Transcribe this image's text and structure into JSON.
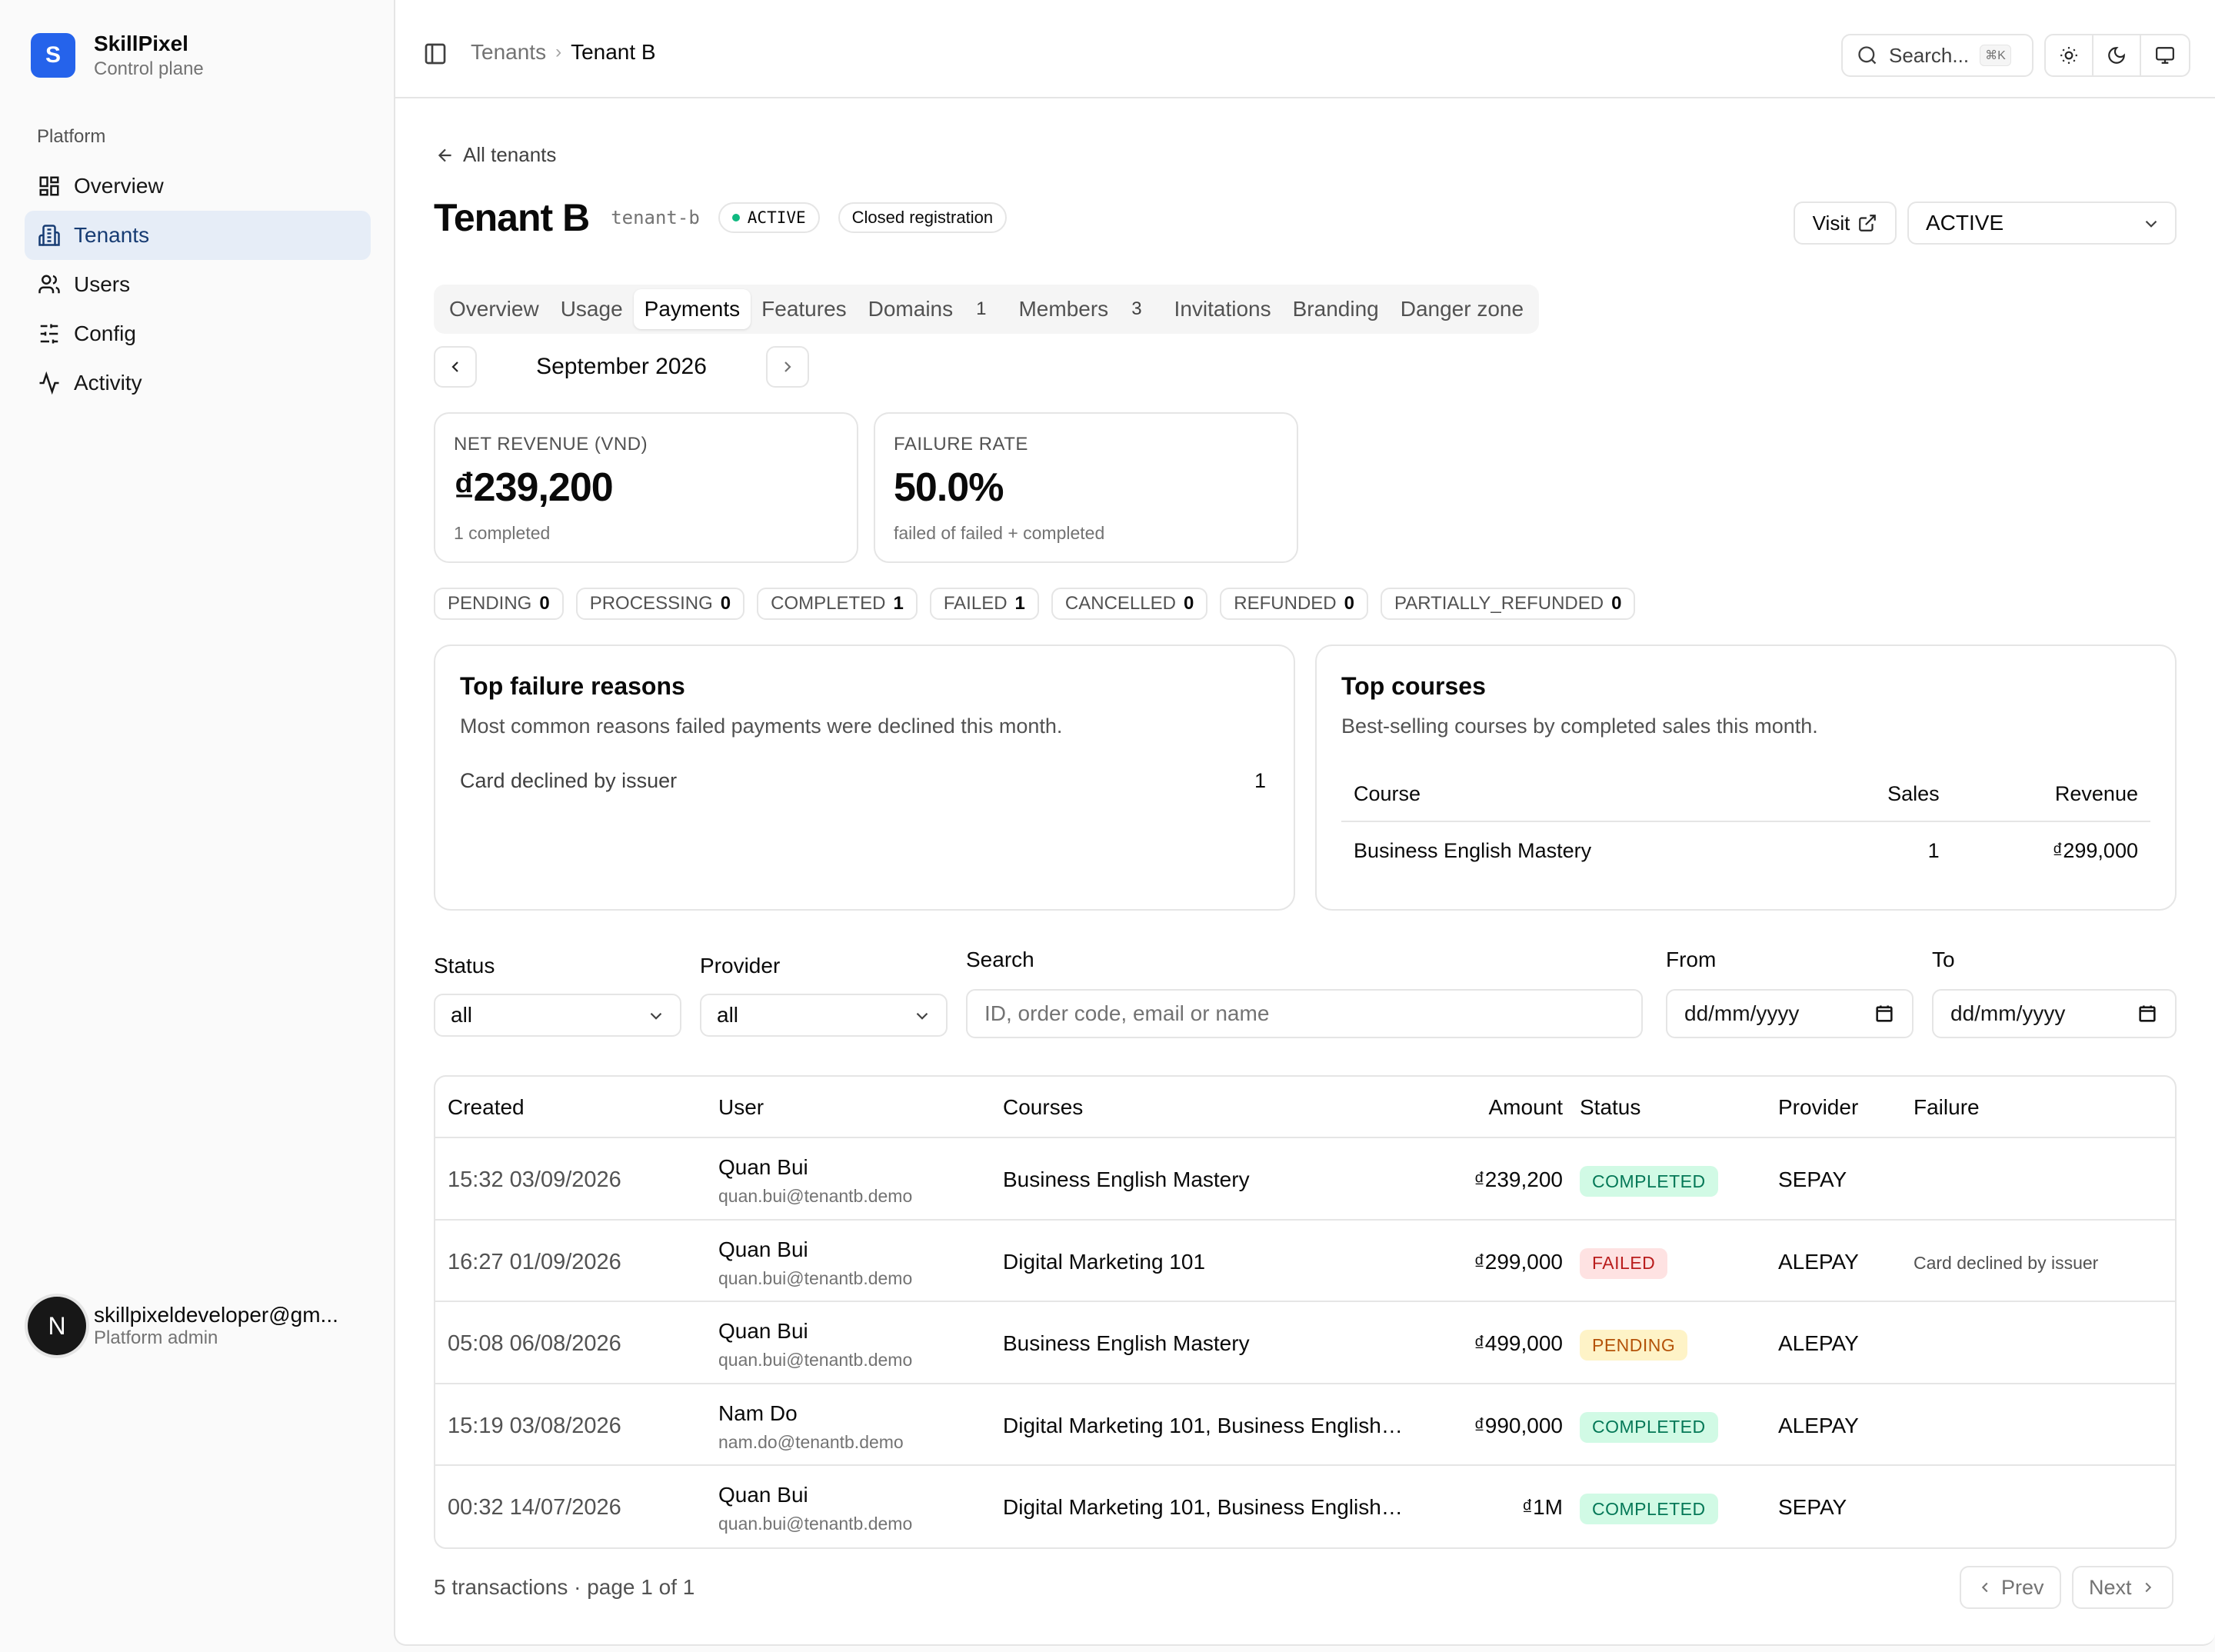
{
  "app": {
    "name": "SkillPixel",
    "subtitle": "Control plane",
    "logo_letter": "S"
  },
  "sidebar": {
    "section": "Platform",
    "items": [
      {
        "label": "Overview",
        "icon": "dashboard-icon"
      },
      {
        "label": "Tenants",
        "icon": "building-icon",
        "active": true
      },
      {
        "label": "Users",
        "icon": "users-icon"
      },
      {
        "label": "Config",
        "icon": "sliders-icon"
      },
      {
        "label": "Activity",
        "icon": "activity-icon"
      }
    ],
    "user": {
      "initial": "N",
      "email": "skillpixeldeveloper@gm...",
      "role": "Platform admin"
    }
  },
  "topbar": {
    "breadcrumb": [
      "Tenants",
      "Tenant B"
    ],
    "search_label": "Search...",
    "search_shortcut": "⌘K"
  },
  "tenant": {
    "back_link": "All tenants",
    "name": "Tenant B",
    "slug": "tenant-b",
    "status_badge": "ACTIVE",
    "registration": "Closed registration",
    "visit_label": "Visit",
    "status_select": "ACTIVE"
  },
  "tabs": [
    {
      "label": "Overview"
    },
    {
      "label": "Usage"
    },
    {
      "label": "Payments",
      "active": true
    },
    {
      "label": "Features"
    },
    {
      "label": "Domains",
      "count": "1"
    },
    {
      "label": "Members",
      "count": "3"
    },
    {
      "label": "Invitations"
    },
    {
      "label": "Branding"
    },
    {
      "label": "Danger zone"
    }
  ],
  "month": "September 2026",
  "stats": {
    "revenue": {
      "label": "NET REVENUE (VND)",
      "value": "₫239,200",
      "sub": "1 completed"
    },
    "failure": {
      "label": "FAILURE RATE",
      "value": "50.0%",
      "sub": "failed of failed + completed"
    }
  },
  "status_counts": [
    {
      "label": "PENDING",
      "count": "0"
    },
    {
      "label": "PROCESSING",
      "count": "0"
    },
    {
      "label": "COMPLETED",
      "count": "1"
    },
    {
      "label": "FAILED",
      "count": "1"
    },
    {
      "label": "CANCELLED",
      "count": "0"
    },
    {
      "label": "REFUNDED",
      "count": "0"
    },
    {
      "label": "PARTIALLY_REFUNDED",
      "count": "0"
    }
  ],
  "failure_reasons": {
    "title": "Top failure reasons",
    "description": "Most common reasons failed payments were declined this month.",
    "items": [
      {
        "reason": "Card declined by issuer",
        "count": "1"
      }
    ]
  },
  "top_courses": {
    "title": "Top courses",
    "description": "Best-selling courses by completed sales this month.",
    "headers": {
      "course": "Course",
      "sales": "Sales",
      "revenue": "Revenue"
    },
    "rows": [
      {
        "course": "Business English Mastery",
        "sales": "1",
        "revenue": "₫299,000"
      }
    ]
  },
  "filters": {
    "status_label": "Status",
    "status_value": "all",
    "provider_label": "Provider",
    "provider_value": "all",
    "search_label": "Search",
    "search_placeholder": "ID, order code, email or name",
    "from_label": "From",
    "from_value": "dd/mm/yyyy",
    "to_label": "To",
    "to_value": "dd/mm/yyyy"
  },
  "transactions": {
    "headers": {
      "created": "Created",
      "user": "User",
      "courses": "Courses",
      "amount": "Amount",
      "status": "Status",
      "provider": "Provider",
      "failure": "Failure"
    },
    "rows": [
      {
        "created": "15:32 03/09/2026",
        "name": "Quan Bui",
        "email": "quan.bui@tenantb.demo",
        "courses": "Business English Mastery",
        "amount": "₫239,200",
        "status": "COMPLETED",
        "status_kind": "completed",
        "provider": "SEPAY",
        "failure": ""
      },
      {
        "created": "16:27 01/09/2026",
        "name": "Quan Bui",
        "email": "quan.bui@tenantb.demo",
        "courses": "Digital Marketing 101",
        "amount": "₫299,000",
        "status": "FAILED",
        "status_kind": "failed",
        "provider": "ALEPAY",
        "failure": "Card declined by issuer"
      },
      {
        "created": "05:08 06/08/2026",
        "name": "Quan Bui",
        "email": "quan.bui@tenantb.demo",
        "courses": "Business English Mastery",
        "amount": "₫499,000",
        "status": "PENDING",
        "status_kind": "pending",
        "provider": "ALEPAY",
        "failure": ""
      },
      {
        "created": "15:19 03/08/2026",
        "name": "Nam Do",
        "email": "nam.do@tenantb.demo",
        "courses": "Digital Marketing 101, Business English ...",
        "amount": "₫990,000",
        "status": "COMPLETED",
        "status_kind": "completed",
        "provider": "ALEPAY",
        "failure": ""
      },
      {
        "created": "00:32 14/07/2026",
        "name": "Quan Bui",
        "email": "quan.bui@tenantb.demo",
        "courses": "Digital Marketing 101, Business English ...",
        "amount": "₫1M",
        "status": "COMPLETED",
        "status_kind": "completed",
        "provider": "SEPAY",
        "failure": ""
      }
    ],
    "summary": "5 transactions · page 1 of 1",
    "prev_label": "Prev",
    "next_label": "Next"
  },
  "colors": {
    "accent": "#2563eb",
    "active_nav_bg": "#e6edf7",
    "completed": "#047857",
    "failed": "#b91c1c",
    "pending": "#b45309"
  }
}
